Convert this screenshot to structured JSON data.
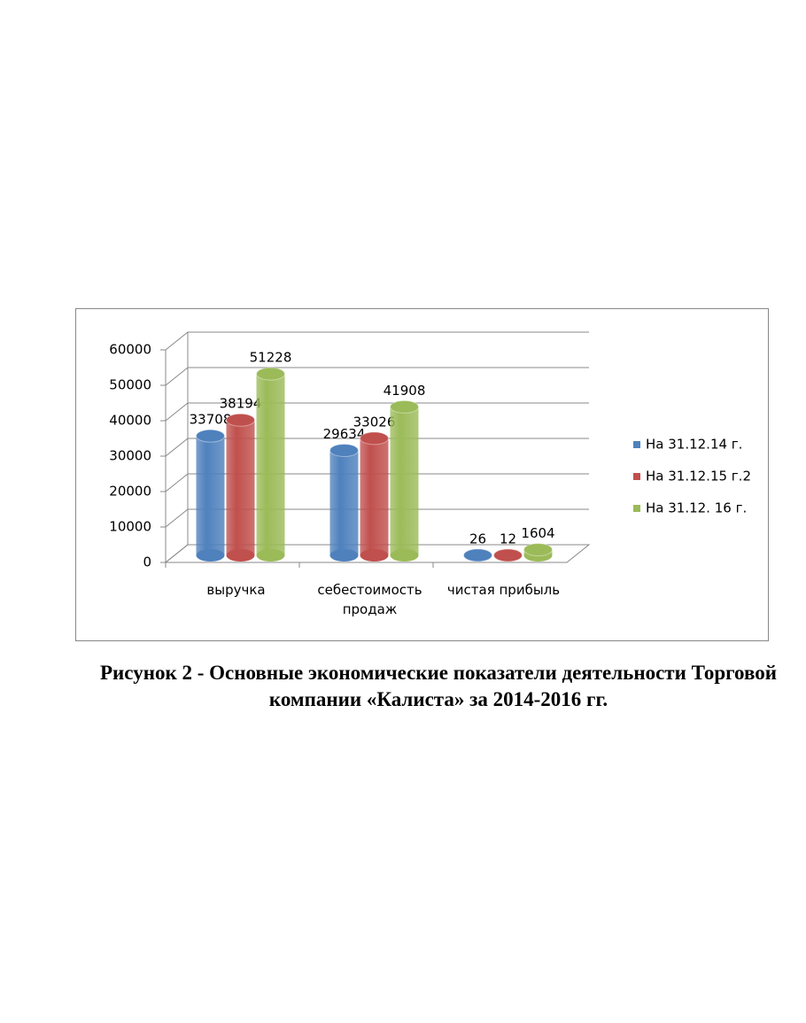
{
  "chart_data": {
    "type": "bar",
    "categories": [
      "выручка",
      "себестоимость продаж",
      "чистая прибыль"
    ],
    "series": [
      {
        "name": "На 31.12.14 г.",
        "color": "#4f81bd",
        "values": [
          33708,
          29634,
          26
        ]
      },
      {
        "name": "На 31.12.15 г.2",
        "color": "#c0504d",
        "values": [
          38194,
          33026,
          12
        ]
      },
      {
        "name": "На 31.12. 16 г.",
        "color": "#9bbb59",
        "values": [
          51228,
          41908,
          1604
        ]
      }
    ],
    "ylim": [
      0,
      60000
    ],
    "yticks": [
      0,
      10000,
      20000,
      30000,
      40000,
      50000,
      60000
    ],
    "grid": true,
    "legend": "right",
    "caption": "Рисунок 2 - Основные экономические показатели деятельности Торговой компании «Калиста» за 2014-2016 гг."
  }
}
